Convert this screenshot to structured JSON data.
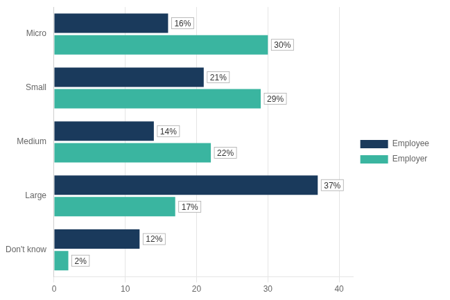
{
  "chart_data": {
    "type": "bar",
    "orientation": "horizontal",
    "categories": [
      "Micro",
      "Small",
      "Medium",
      "Large",
      "Don't know"
    ],
    "series": [
      {
        "name": "Employee",
        "color": "#1a3a5c",
        "values": [
          16,
          21,
          14,
          37,
          12
        ],
        "value_labels": [
          "16%",
          "21%",
          "14%",
          "37%",
          "12%"
        ]
      },
      {
        "name": "Employer",
        "color": "#3ab5a0",
        "values": [
          30,
          29,
          22,
          17,
          2
        ],
        "value_labels": [
          "30%",
          "29%",
          "22%",
          "17%",
          "2%"
        ]
      }
    ],
    "xlim": [
      0,
      42
    ],
    "xticks": [
      0,
      10,
      20,
      30,
      40
    ],
    "grid": true,
    "legend": "right",
    "data_labels": true
  }
}
